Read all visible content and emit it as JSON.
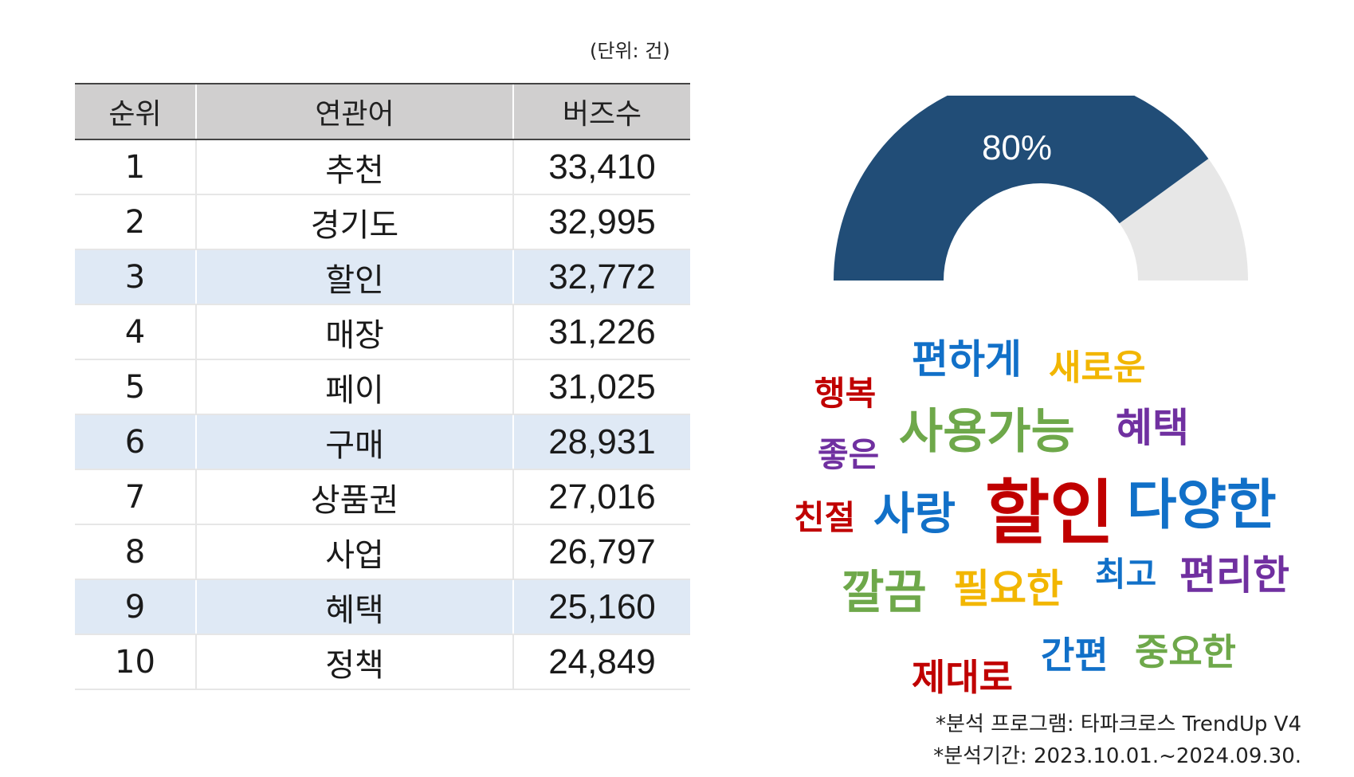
{
  "unit_note": "(단위: 건)",
  "table": {
    "headers": [
      "순위",
      "연관어",
      "버즈수"
    ],
    "rows": [
      {
        "rank": "1",
        "term": "추천",
        "buzz": "33,410"
      },
      {
        "rank": "2",
        "term": "경기도",
        "buzz": "32,995"
      },
      {
        "rank": "3",
        "term": "할인",
        "buzz": "32,772"
      },
      {
        "rank": "4",
        "term": "매장",
        "buzz": "31,226"
      },
      {
        "rank": "5",
        "term": "페이",
        "buzz": "31,025"
      },
      {
        "rank": "6",
        "term": "구매",
        "buzz": "28,931"
      },
      {
        "rank": "7",
        "term": "상품권",
        "buzz": "27,016"
      },
      {
        "rank": "8",
        "term": "사업",
        "buzz": "26,797"
      },
      {
        "rank": "9",
        "term": "혜택",
        "buzz": "25,160"
      },
      {
        "rank": "10",
        "term": "정책",
        "buzz": "24,849"
      }
    ]
  },
  "chart_data": [
    {
      "type": "table",
      "columns": [
        "순위",
        "연관어",
        "버즈수"
      ],
      "rows": [
        [
          1,
          "추천",
          33410
        ],
        [
          2,
          "경기도",
          32995
        ],
        [
          3,
          "할인",
          32772
        ],
        [
          4,
          "매장",
          31226
        ],
        [
          5,
          "페이",
          31025
        ],
        [
          6,
          "구매",
          28931
        ],
        [
          7,
          "상품권",
          27016
        ],
        [
          8,
          "사업",
          26797
        ],
        [
          9,
          "혜택",
          25160
        ],
        [
          10,
          "정책",
          24849
        ]
      ],
      "highlighted_rows": [
        3,
        6,
        9
      ]
    },
    {
      "type": "pie",
      "style": "half-donut gauge",
      "value": 80,
      "max": 100,
      "label": "80%",
      "colors": {
        "value": "#214d77",
        "remainder": "#e7e7e7",
        "label": "#ffffff"
      }
    },
    {
      "type": "wordcloud",
      "words": [
        {
          "text": "할인",
          "color": "#c00000"
        },
        {
          "text": "다양한",
          "color": "#1170c8"
        },
        {
          "text": "사용가능",
          "color": "#6ea84a"
        },
        {
          "text": "사랑",
          "color": "#1170c8"
        },
        {
          "text": "편하게",
          "color": "#1170c8"
        },
        {
          "text": "편리한",
          "color": "#7030a0"
        },
        {
          "text": "혜택",
          "color": "#7030a0"
        },
        {
          "text": "깔끔",
          "color": "#6ea84a"
        },
        {
          "text": "필요한",
          "color": "#f2b600"
        },
        {
          "text": "새로운",
          "color": "#f2b600"
        },
        {
          "text": "중요한",
          "color": "#6ea84a"
        },
        {
          "text": "간편",
          "color": "#1170c8"
        },
        {
          "text": "제대로",
          "color": "#c00000"
        },
        {
          "text": "최고",
          "color": "#1170c8"
        },
        {
          "text": "행복",
          "color": "#c00000"
        },
        {
          "text": "좋은",
          "color": "#7030a0"
        },
        {
          "text": "친절",
          "color": "#c00000"
        }
      ]
    }
  ],
  "footnotes": [
    "*분석 프로그램: 타파크로스 TrendUp V4",
    "*분석기간: 2023.10.01.~2024.09.30."
  ]
}
